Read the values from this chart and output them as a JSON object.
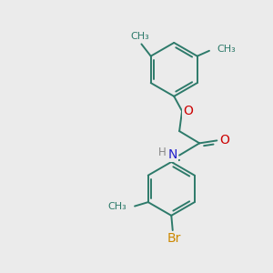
{
  "background_color": "#ebebeb",
  "bond_color": "#2d7a6a",
  "atom_colors": {
    "O": "#cc0000",
    "N": "#2020cc",
    "Br": "#cc8800",
    "C": "#2d7a6a",
    "H": "#888888"
  },
  "bond_width": 1.4,
  "font_size": 8.5,
  "fig_size": [
    3.0,
    3.0
  ],
  "dpi": 100,
  "xlim": [
    0,
    10
  ],
  "ylim": [
    0,
    10
  ]
}
